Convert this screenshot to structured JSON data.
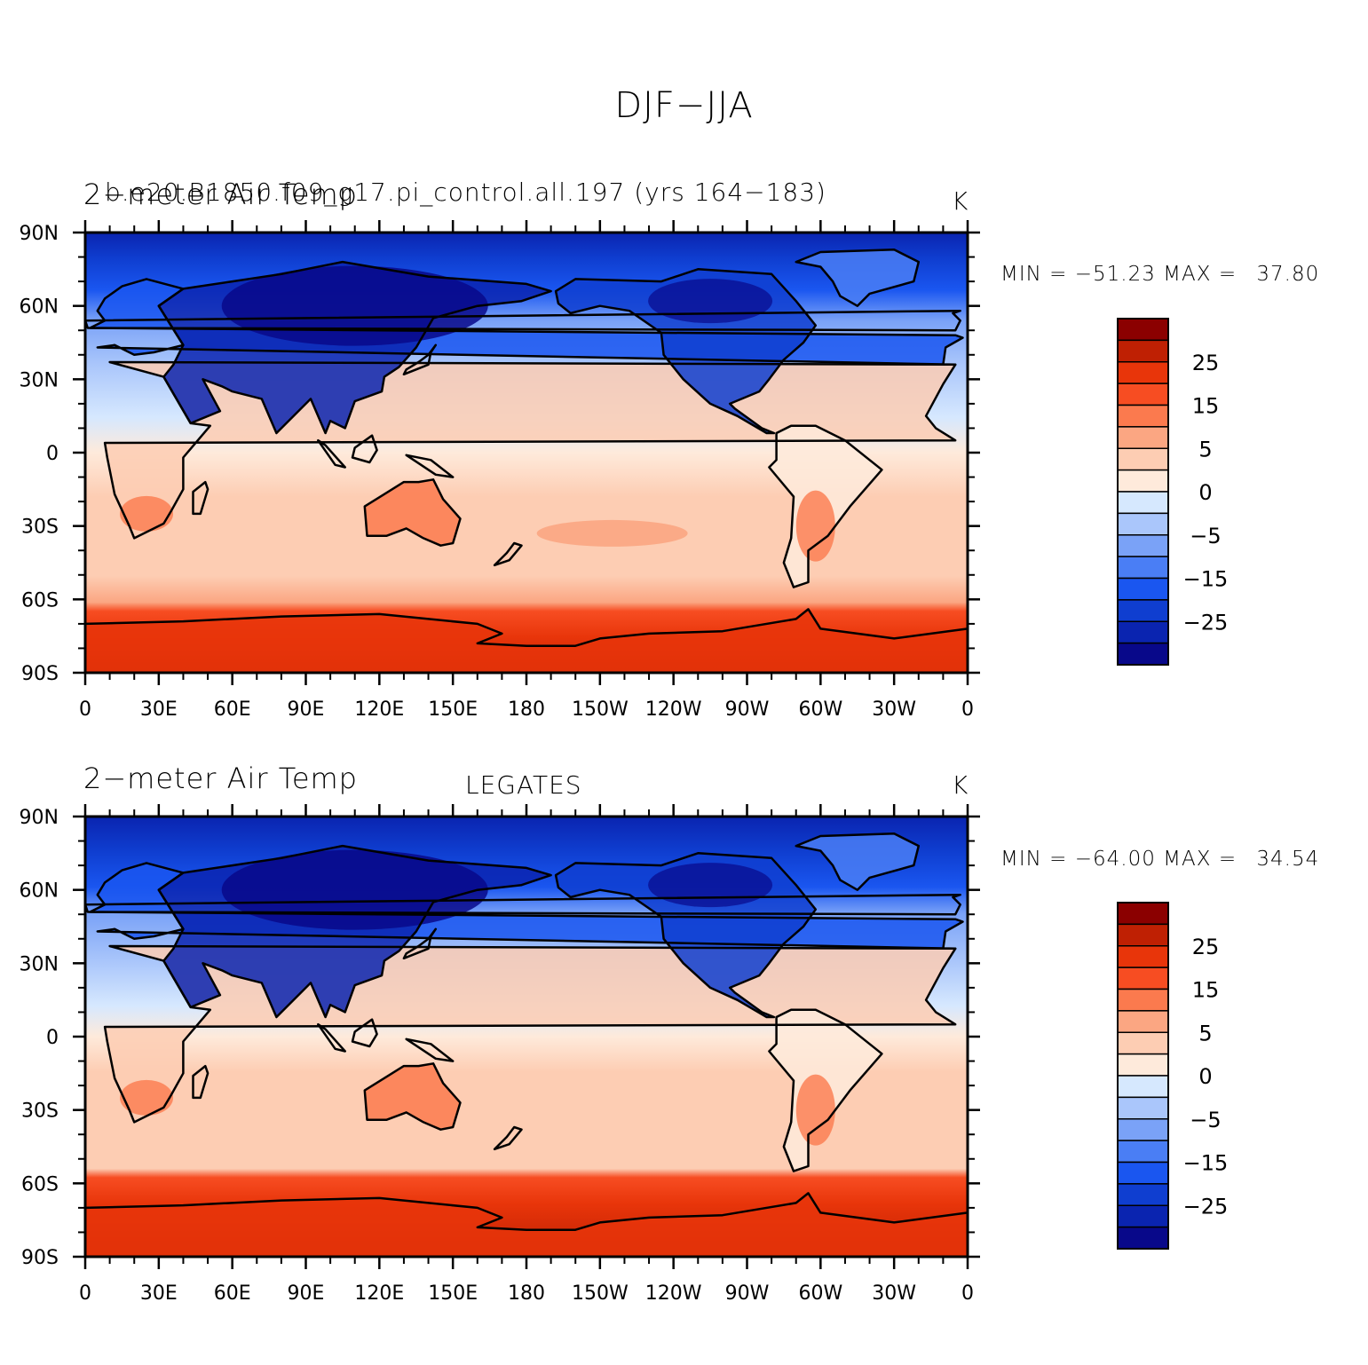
{
  "title": "DJF−JJA",
  "palette": [
    "#08088a",
    "#0a24b0",
    "#0f3ed0",
    "#1a56f0",
    "#4a7ef5",
    "#7aa2f7",
    "#aac6fb",
    "#d6e8fe",
    "#feeadb",
    "#fdcdb3",
    "#fba682",
    "#fb7a4e",
    "#f74d22",
    "#e8350a",
    "#bf2003",
    "#8b0000"
  ],
  "colorbar_labels": [
    "25",
    "15",
    "5",
    "0",
    "−5",
    "−15",
    "−25"
  ],
  "lat_labels": [
    "90N",
    "60N",
    "30N",
    "0",
    "30S",
    "60S",
    "90S"
  ],
  "lon_labels": [
    "0",
    "30E",
    "60E",
    "90E",
    "120E",
    "150E",
    "180",
    "150W",
    "120W",
    "90W",
    "60W",
    "30W",
    "0"
  ],
  "panels": [
    {
      "left_title": "2−meter Air Temp",
      "center_title": "b.e20.B1850.f09_g17.pi_control.all.197 (yrs 164−183)",
      "right_title": "K",
      "min_label": "MIN =",
      "min_value": "−51.23",
      "max_label": "MAX =",
      "max_value": "37.80"
    },
    {
      "left_title": "2−meter Air Temp",
      "center_title": "LEGATES",
      "right_title": "K",
      "min_label": "MIN =",
      "min_value": "−64.00",
      "max_label": "MAX =",
      "max_value": "34.54"
    }
  ]
}
